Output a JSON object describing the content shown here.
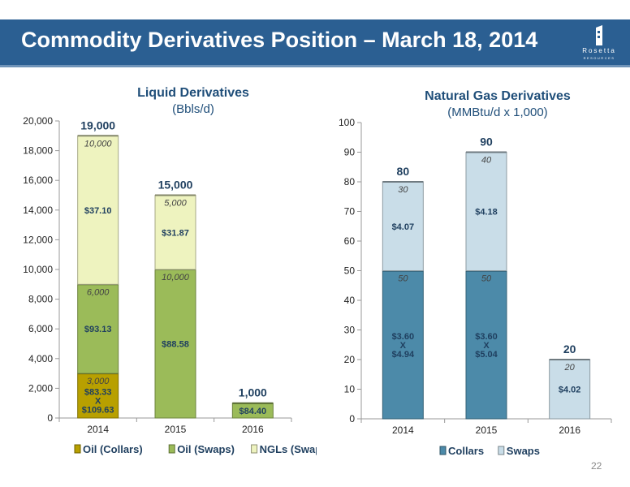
{
  "header": {
    "title": "Commodity Derivatives Position – March 18, 2014",
    "logo_text": "Rosetta",
    "logo_subtext": "RESOURCES"
  },
  "page_number": "22",
  "colors": {
    "banner": "#2b5f92",
    "oil_collars": "#b8a000",
    "oil_swaps": "#9bbb59",
    "ngls_swaps": "#eef3bf",
    "gas_collars": "#4c8aa9",
    "gas_swaps": "#c9dde8"
  },
  "chart_data": [
    {
      "type": "bar",
      "stacked": true,
      "title": "Liquid Derivatives",
      "subtitle": "(Bbls/d)",
      "categories": [
        "2014",
        "2015",
        "2016"
      ],
      "ylim": [
        0,
        20000
      ],
      "yticks": [
        "0",
        "2,000",
        "4,000",
        "6,000",
        "8,000",
        "10,000",
        "12,000",
        "14,000",
        "16,000",
        "18,000",
        "20,000"
      ],
      "totals": [
        "19,000",
        "15,000",
        "1,000"
      ],
      "legend": "bottom",
      "series": [
        {
          "name": "Oil (Collars)",
          "color": "#b8a000",
          "values": [
            3000,
            0,
            0
          ],
          "volume_labels": [
            "3,000",
            "",
            ""
          ],
          "price_labels": [
            [
              "$83.33",
              "X",
              "$109.63"
            ],
            [],
            []
          ]
        },
        {
          "name": "Oil (Swaps)",
          "color": "#9bbb59",
          "values": [
            6000,
            10000,
            1000
          ],
          "volume_labels": [
            "6,000",
            "10,000",
            ""
          ],
          "price_labels": [
            [
              "$93.13"
            ],
            [
              "$88.58"
            ],
            [
              "$84.40"
            ]
          ]
        },
        {
          "name": "NGLs (Swaps)",
          "color": "#eef3bf",
          "values": [
            10000,
            5000,
            0
          ],
          "volume_labels": [
            "10,000",
            "5,000",
            ""
          ],
          "price_labels": [
            [
              "$37.10"
            ],
            [
              "$31.87"
            ],
            []
          ]
        }
      ]
    },
    {
      "type": "bar",
      "stacked": true,
      "title": "Natural Gas Derivatives",
      "subtitle": "(MMBtu/d x 1,000)",
      "categories": [
        "2014",
        "2015",
        "2016"
      ],
      "ylim": [
        0,
        100
      ],
      "yticks": [
        "0",
        "10",
        "20",
        "30",
        "40",
        "50",
        "60",
        "70",
        "80",
        "90",
        "100"
      ],
      "totals": [
        "80",
        "90",
        "20"
      ],
      "legend": "bottom",
      "series": [
        {
          "name": "Collars",
          "color": "#4c8aa9",
          "values": [
            50,
            50,
            0
          ],
          "volume_labels": [
            "50",
            "50",
            ""
          ],
          "price_labels": [
            [
              "$3.60",
              "X",
              "$4.94"
            ],
            [
              "$3.60",
              "X",
              "$5.04"
            ],
            []
          ]
        },
        {
          "name": "Swaps",
          "color": "#c9dde8",
          "values": [
            30,
            40,
            20
          ],
          "volume_labels": [
            "30",
            "40",
            "20"
          ],
          "price_labels": [
            [
              "$4.07"
            ],
            [
              "$4.18"
            ],
            [
              "$4.02"
            ]
          ]
        }
      ]
    }
  ]
}
